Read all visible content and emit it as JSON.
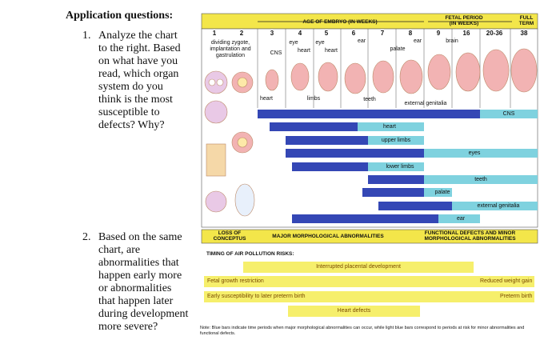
{
  "questions": {
    "heading": "Application questions:",
    "items": [
      {
        "number": "1.",
        "text": "Analyze the chart to the right. Based on what have you read, which organ system do you think is the most susceptible to defects? Why?"
      },
      {
        "number": "2.",
        "text": "Based on the same chart, are abnormalities that happen early more or abnormalities that happen later during development more severe?"
      }
    ]
  },
  "figure": {
    "header": {
      "embryo": "AGE OF EMBRYO (IN WEEKS)",
      "fetal": "FETAL PERIOD (IN WEEKS)",
      "term": "FULL TERM"
    },
    "weeks": [
      "1",
      "2",
      "3",
      "4",
      "5",
      "6",
      "7",
      "8",
      "9",
      "16",
      "20-36",
      "38"
    ],
    "top_labels": [
      "dividing zygote, implantation and gastrulation",
      "CNS",
      "eye",
      "heart",
      "eye",
      "heart",
      "ear",
      "palate",
      "ear",
      "brain"
    ],
    "bottom_labels": [
      "heart",
      "limbs",
      "teeth",
      "external genitalia"
    ],
    "bars": [
      "CNS",
      "heart",
      "upper limbs",
      "eyes",
      "lower limbs",
      "teeth",
      "palate",
      "external genitalia",
      "ear"
    ],
    "periods": [
      "LOSS OF CONCEPTUS",
      "MAJOR MORPHOLOGICAL ABNORMALITIES",
      "FUNCTIONAL DEFECTS AND MINOR MORPHOLOGICAL ABNORMALITIES"
    ],
    "pollution": {
      "title": "TIMING OF AIR POLLUTION RISKS:",
      "risks": [
        {
          "label": "Interrupted placental development"
        },
        {
          "label": "Fetal growth restriction",
          "outcome": "Reduced weight gain"
        },
        {
          "label": "Early susceptibility to later preterm birth",
          "outcome": "Preterm birth"
        },
        {
          "label": "Heart defects"
        }
      ]
    },
    "note": "Note: Blue bars indicate time periods when major morphological abnormalities can occur, while light blue bars correspond to periods at risk for minor abnormalities and functional defects."
  }
}
